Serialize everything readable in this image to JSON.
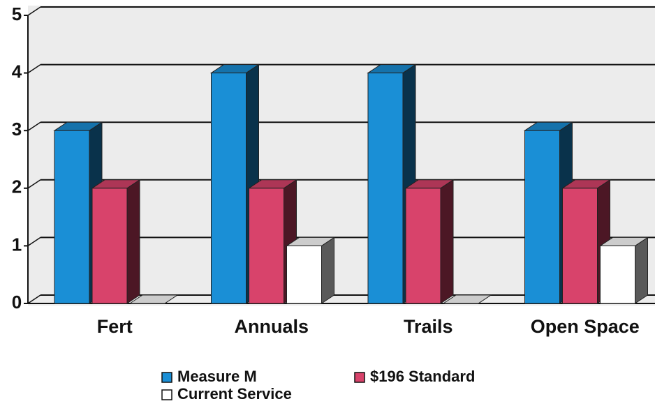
{
  "chart_data": {
    "type": "bar3d",
    "categories": [
      "Fert",
      "Annuals",
      "Trails",
      "Open Space"
    ],
    "series": [
      {
        "name": "Measure M",
        "color": "#1a8fd6",
        "values": [
          3,
          4,
          4,
          3
        ]
      },
      {
        "name": "$196 Standard",
        "color": "#d8436b",
        "values": [
          2,
          2,
          2,
          2
        ]
      },
      {
        "name": "Current Service",
        "color": "#ffffff",
        "values": [
          0,
          1,
          0,
          1
        ]
      }
    ],
    "ylim": [
      0,
      5
    ],
    "yticks": [
      0,
      1,
      2,
      3,
      4,
      5
    ],
    "grid": true
  }
}
